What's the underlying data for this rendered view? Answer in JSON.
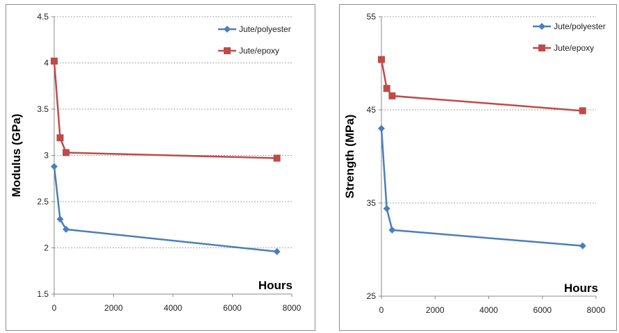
{
  "chart_data": [
    {
      "type": "line",
      "title": "",
      "xlabel": "Hours",
      "ylabel": "Modulus (GPa)",
      "xlim": [
        0,
        8000
      ],
      "ylim": [
        1.5,
        4.5
      ],
      "xticks": [
        0,
        2000,
        4000,
        6000,
        8000
      ],
      "yticks": [
        1.5,
        2,
        2.5,
        3,
        3.5,
        4,
        4.5
      ],
      "ytick_labels": [
        "1.5",
        "2",
        "2.5",
        "3",
        "3.5",
        "4",
        "4.5"
      ],
      "grid": "horizontal",
      "legend": "top-right",
      "series": [
        {
          "name": "Jute/polyester",
          "color": "#4a7ebb",
          "marker": "diamond",
          "x": [
            0,
            200,
            400,
            7500
          ],
          "y": [
            2.88,
            2.31,
            2.2,
            1.96
          ]
        },
        {
          "name": "Jute/epoxy",
          "color": "#be4b48",
          "marker": "square",
          "x": [
            0,
            200,
            400,
            7500
          ],
          "y": [
            4.02,
            3.19,
            3.03,
            2.97
          ]
        }
      ]
    },
    {
      "type": "line",
      "title": "",
      "xlabel": "Hours",
      "ylabel": "Strength (MPa)",
      "xlim": [
        0,
        8000
      ],
      "ylim": [
        25,
        55
      ],
      "xticks": [
        0,
        2000,
        4000,
        6000,
        8000
      ],
      "yticks": [
        25,
        35,
        45,
        55
      ],
      "ytick_labels": [
        "25",
        "35",
        "45",
        "55"
      ],
      "grid": "horizontal",
      "legend": "top-right",
      "series": [
        {
          "name": "Jute/polyester",
          "color": "#4a7ebb",
          "marker": "diamond",
          "x": [
            0,
            200,
            400,
            7500
          ],
          "y": [
            43.0,
            34.4,
            32.1,
            30.4
          ]
        },
        {
          "name": "Jute/epoxy",
          "color": "#be4b48",
          "marker": "square",
          "x": [
            0,
            200,
            400,
            7500
          ],
          "y": [
            50.4,
            47.3,
            46.5,
            44.9
          ]
        }
      ]
    }
  ]
}
